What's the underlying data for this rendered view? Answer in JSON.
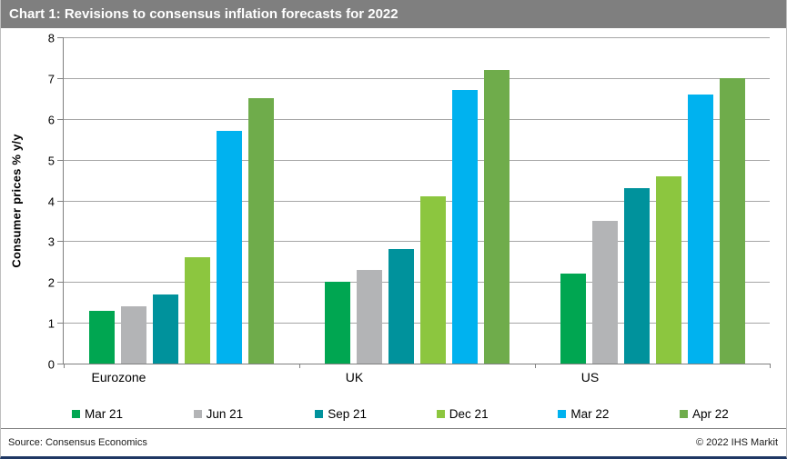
{
  "window": {
    "title": "Chart 1: Revisions to consensus inflation forecasts for 2022"
  },
  "footer": {
    "source": "Source:  Consensus Economics",
    "copyright": "© 2022  IHS Markit"
  },
  "chart_data": {
    "type": "bar",
    "title": "Chart 1: Revisions to consensus inflation forecasts for 2022",
    "categories": [
      "Eurozone",
      "UK",
      "US"
    ],
    "series": [
      {
        "name": "Mar 21",
        "color": "#00a651",
        "values": [
          1.3,
          2.0,
          2.2
        ]
      },
      {
        "name": "Jun 21",
        "color": "#b3b4b6",
        "values": [
          1.4,
          2.3,
          3.5
        ]
      },
      {
        "name": "Sep 21",
        "color": "#00929c",
        "values": [
          1.7,
          2.8,
          4.3
        ]
      },
      {
        "name": "Dec 21",
        "color": "#8cc63f",
        "values": [
          2.6,
          4.1,
          4.6
        ]
      },
      {
        "name": "Mar 22",
        "color": "#00b2ef",
        "values": [
          5.7,
          6.7,
          6.6
        ]
      },
      {
        "name": "Apr 22",
        "color": "#6fac4b",
        "values": [
          6.5,
          7.2,
          7.0
        ]
      }
    ],
    "xlabel": "",
    "ylabel": "Consumer  prices % y/y",
    "ylim": [
      0,
      8
    ],
    "ytick_step": 1,
    "grid": true,
    "legend_position": "bottom",
    "axis_color": "#808080",
    "gridline_color": "#a6a6a6"
  }
}
